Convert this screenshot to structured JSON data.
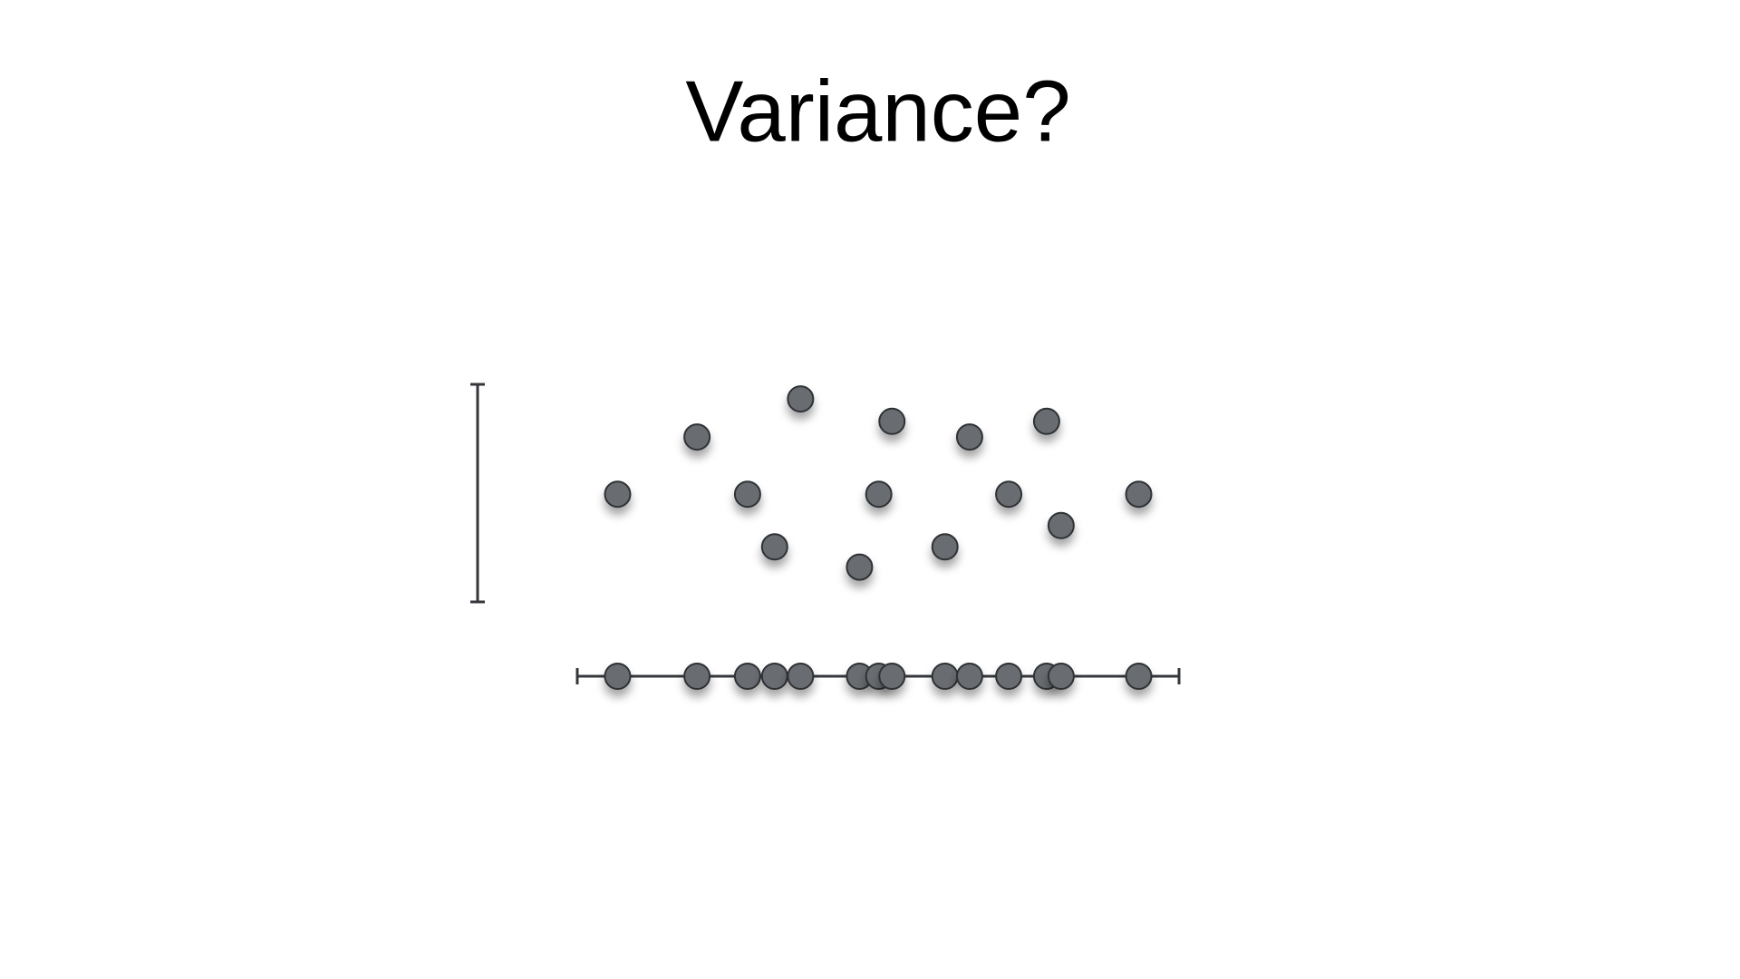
{
  "chart_data": {
    "type": "scatter",
    "title": "Variance?",
    "x": [
      0.67,
      1.99,
      2.83,
      3.28,
      3.71,
      4.69,
      5.01,
      5.23,
      6.11,
      6.52,
      7.17,
      7.8,
      8.04,
      9.33
    ],
    "values": [
      4.95,
      7.58,
      4.95,
      2.53,
      9.33,
      1.6,
      4.95,
      8.3,
      2.53,
      7.58,
      4.95,
      8.3,
      3.51,
      4.95
    ],
    "xlim": [
      0,
      10
    ],
    "ylim": [
      0,
      10
    ],
    "color": "#696c70"
  }
}
